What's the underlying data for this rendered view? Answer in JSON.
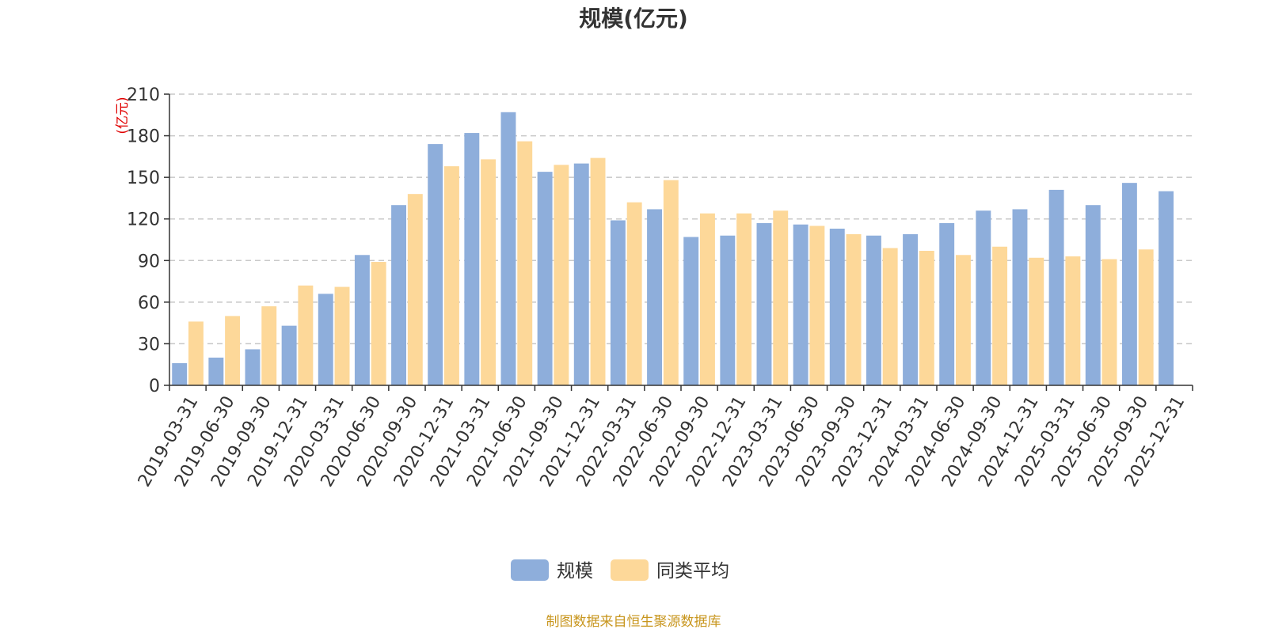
{
  "chart_data": {
    "type": "bar",
    "title": "规模(亿元)",
    "ylabel": "(亿元)",
    "ylim": [
      0,
      210
    ],
    "yticks": [
      0,
      30,
      60,
      90,
      120,
      150,
      180,
      210
    ],
    "grid": true,
    "legend_position": "bottom-center",
    "categories": [
      "2019-03-31",
      "2019-06-30",
      "2019-09-30",
      "2019-12-31",
      "2020-03-31",
      "2020-06-30",
      "2020-09-30",
      "2020-12-31",
      "2021-03-31",
      "2021-06-30",
      "2021-09-30",
      "2021-12-31",
      "2022-03-31",
      "2022-06-30",
      "2022-09-30",
      "2022-12-31",
      "2023-03-31",
      "2023-06-30",
      "2023-09-30",
      "2023-12-31",
      "2024-03-31",
      "2024-06-30",
      "2024-09-30",
      "2024-12-31",
      "2025-03-31",
      "2025-06-30",
      "2025-09-30",
      "2025-12-31"
    ],
    "series": [
      {
        "name": "规模",
        "color": "#8eaedb",
        "values": [
          16,
          20,
          26,
          43,
          66,
          94,
          130,
          174,
          182,
          197,
          154,
          160,
          119,
          127,
          107,
          108,
          117,
          116,
          113,
          108,
          109,
          117,
          126,
          127,
          141,
          130,
          146,
          140
        ]
      },
      {
        "name": "同类平均",
        "color": "#fdd899",
        "values": [
          46,
          50,
          57,
          72,
          71,
          89,
          138,
          158,
          163,
          176,
          159,
          164,
          132,
          148,
          124,
          124,
          126,
          115,
          109,
          99,
          97,
          94,
          100,
          92,
          93,
          91,
          98,
          null
        ]
      }
    ]
  },
  "source_note": "制图数据来自恒生聚源数据库"
}
